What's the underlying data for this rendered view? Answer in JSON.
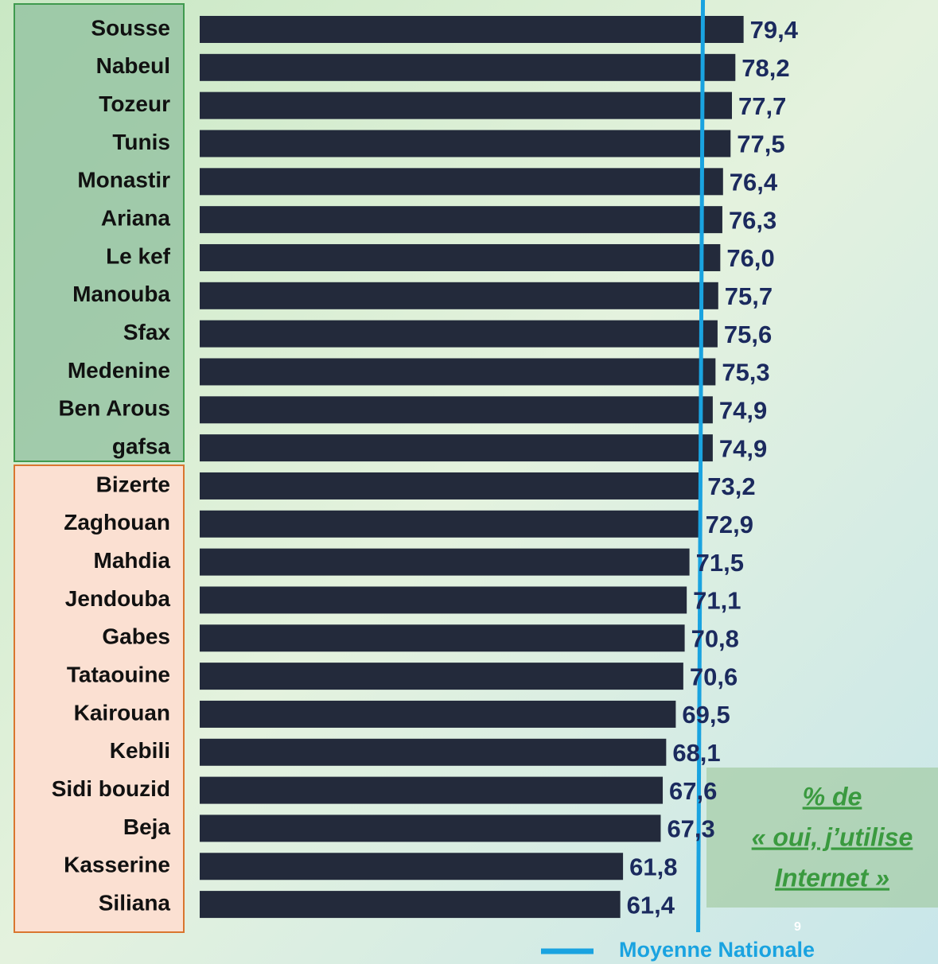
{
  "chart_data": {
    "type": "bar",
    "orientation": "horizontal",
    "categories": [
      "Sousse",
      "Nabeul",
      "Tozeur",
      "Tunis",
      "Monastir",
      "Ariana",
      "Le kef",
      "Manouba",
      "Sfax",
      "Medenine",
      "Ben Arous",
      "gafsa",
      "Bizerte",
      "Zaghouan",
      "Mahdia",
      "Jendouba",
      "Gabes",
      "Tataouine",
      "Kairouan",
      "Kebili",
      "Sidi bouzid",
      "Beja",
      "Kasserine",
      "Siliana"
    ],
    "values": [
      79.4,
      78.2,
      77.7,
      77.5,
      76.4,
      76.3,
      76.0,
      75.7,
      75.6,
      75.3,
      74.9,
      74.9,
      73.2,
      72.9,
      71.5,
      71.1,
      70.8,
      70.6,
      69.5,
      68.1,
      67.6,
      67.3,
      61.8,
      61.4
    ],
    "value_labels": [
      "79,4",
      "78,2",
      "77,7",
      "77,5",
      "76,4",
      "76,3",
      "76,0",
      "75,7",
      "75,6",
      "75,3",
      "74,9",
      "74,9",
      "73,2",
      "72,9",
      "71,5",
      "71,1",
      "70,8",
      "70,6",
      "69,5",
      "68,1",
      "67,6",
      "67,3",
      "61,8",
      "61,4"
    ],
    "color": "#232a3b",
    "xlim": [
      0,
      100
    ],
    "reference_line": {
      "name": "Moyenne Nationale",
      "value": 73,
      "color": "#1aa3e0"
    },
    "annotation": [
      "% de",
      "« oui, j’utilise",
      "Internet »"
    ],
    "page_number": "9"
  }
}
